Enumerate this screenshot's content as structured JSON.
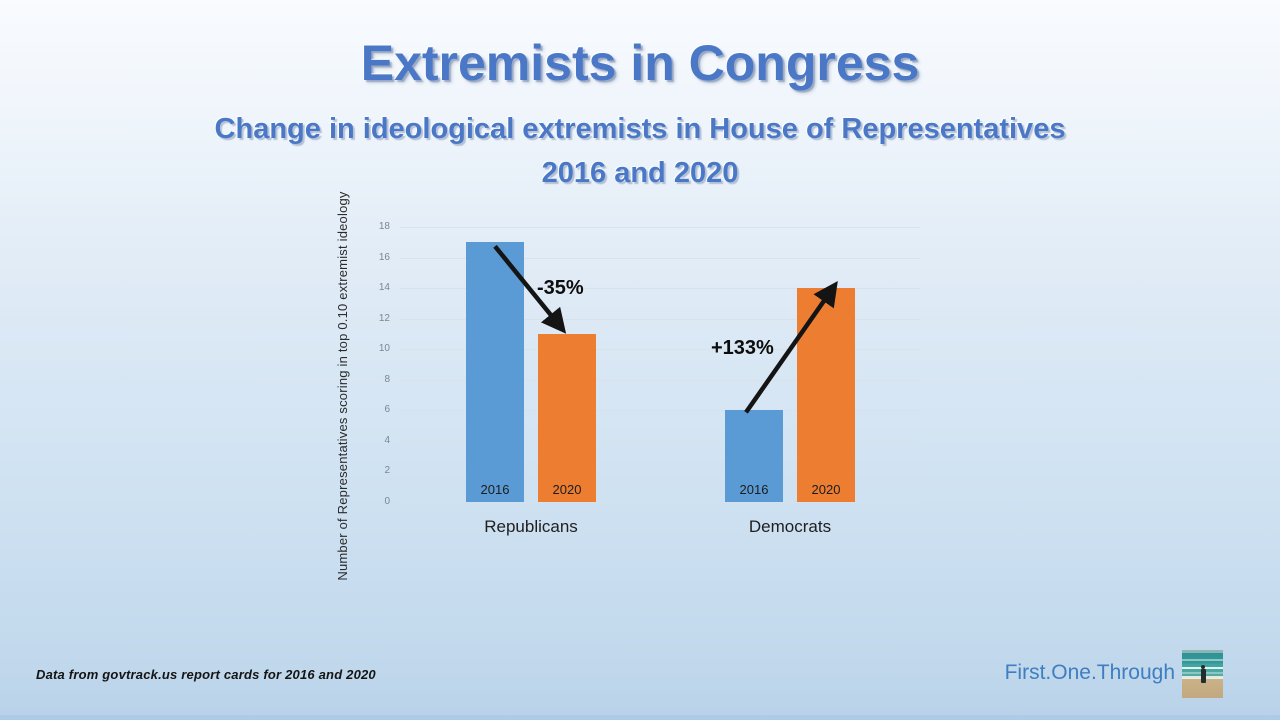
{
  "slide": {
    "title": "Extremists in Congress",
    "subtitle_line1": "Change in ideological extremists in House of Representatives",
    "subtitle_line2": "2016 and 2020",
    "source_note": "Data from govtrack.us report cards for 2016 and 2020",
    "brand": "First.One.Through",
    "logo_icon": "beach-person-photo"
  },
  "colors": {
    "title_blue": "#4a78c6",
    "brand_blue": "#3f7ec0",
    "bar_2016_blue": "#5b9bd5",
    "bar_2020_orange": "#ed7d31",
    "arrow_black": "#141414"
  },
  "chart_data": {
    "type": "bar",
    "groups": [
      "Republicans",
      "Democrats"
    ],
    "series_labels": [
      "2016",
      "2020"
    ],
    "series": [
      {
        "name": "2016",
        "values": [
          17,
          6
        ]
      },
      {
        "name": "2020",
        "values": [
          11,
          14
        ]
      }
    ],
    "annotations": [
      {
        "group": "Republicans",
        "label": "-35%",
        "from": {
          "series": "2016",
          "value": 17
        },
        "to": {
          "series": "2020",
          "value": 11
        }
      },
      {
        "group": "Democrats",
        "label": "+133%",
        "from": {
          "series": "2016",
          "value": 6
        },
        "to": {
          "series": "2020",
          "value": 14
        }
      }
    ],
    "title": "",
    "xlabel": "",
    "ylabel": "Number of Representatives scoring in top 0.10 extremist ideology",
    "ylim": [
      0,
      18
    ],
    "yticks": [
      0,
      2,
      4,
      6,
      8,
      10,
      12,
      14,
      16,
      18
    ],
    "grid": true,
    "legend": "none"
  }
}
